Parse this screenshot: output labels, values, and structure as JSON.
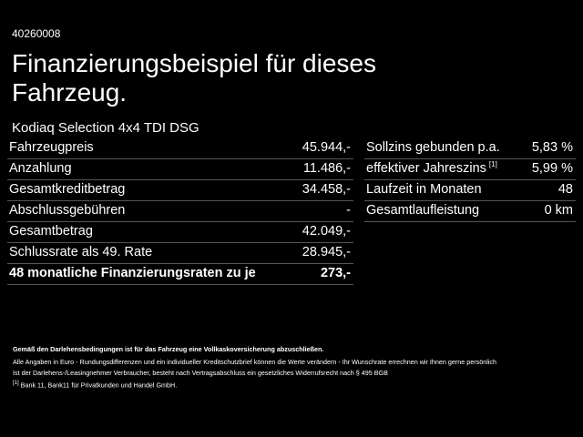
{
  "header": {
    "id": "40260008",
    "title_line1": "Finanzierungsbeispiel für dieses",
    "title_line2": "Fahrzeug.",
    "model": "Kodiaq Selection 4x4 TDI DSG"
  },
  "left_table": {
    "rows": [
      [
        "Fahrzeugpreis",
        "45.944,-"
      ],
      [
        "Anzahlung",
        "11.486,-"
      ],
      [
        "Gesamtkreditbetrag",
        "34.458,-"
      ],
      [
        "Abschlussgebühren",
        "-"
      ],
      [
        "Gesamtbetrag",
        "42.049,-"
      ],
      [
        "Schlussrate als 49. Rate",
        "28.945,-"
      ],
      [
        "48 monatliche Finanzierungsraten zu je",
        "273,-"
      ]
    ]
  },
  "right_table": {
    "rows": [
      [
        "Sollzins gebunden p.a.",
        "5,83 %"
      ],
      [
        "effektiver Jahreszins",
        "5,99 %"
      ],
      [
        "Laufzeit in Monaten",
        "48"
      ],
      [
        "Gesamtlaufleistung",
        "0 km"
      ]
    ],
    "footnote_mark": "[1]"
  },
  "footer": {
    "note1": "Gemäß den Darlehensbedingungen ist für das Fahrzeug eine Vollkaskoversicherung abzuschließen.",
    "note2": "Alle Angaben in Euro - Rundungsdifferenzen und ein individueller Kreditschutzbrief können die Werte verändern - Ihr Wunschrate errechnen wir Ihnen gerne persönlich",
    "note3": "Ist der Darlehens-/Leasingnehmer Verbraucher, besteht nach Vertragsabschluss ein gesetzliches Widerrufsrecht nach § 495 BGB",
    "footnote_mark": "[1]",
    "footnote_text": "Bank 11, Bank11 für Privatkunden und Handel GmbH."
  }
}
